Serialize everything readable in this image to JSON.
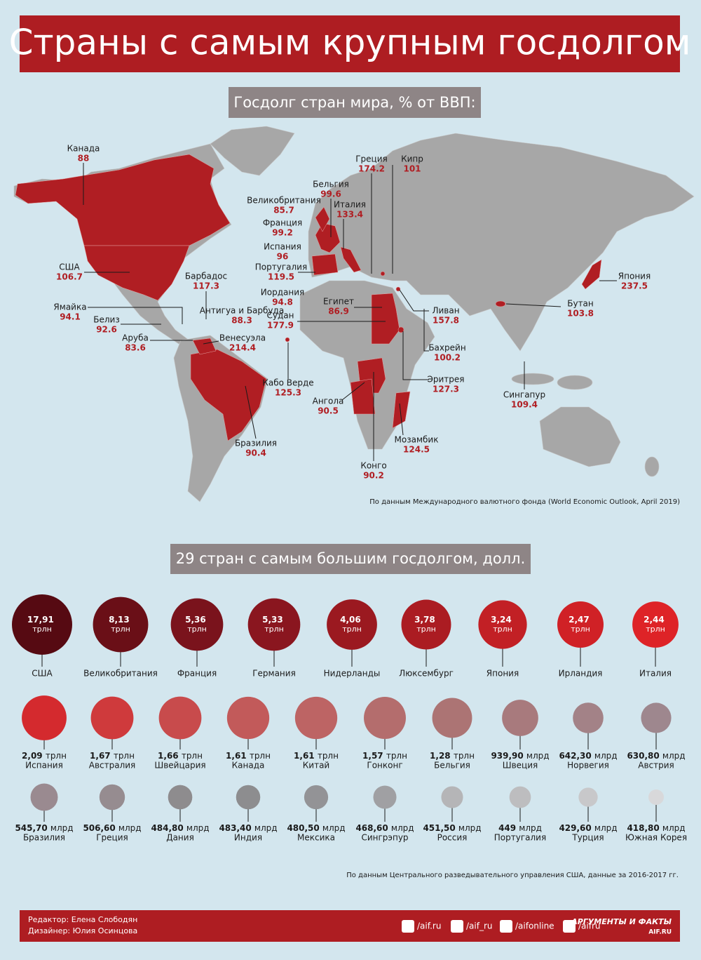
{
  "header": {
    "title": "Страны с самым крупным госдолгом"
  },
  "map": {
    "subtitle": "Госдолг стран мира, % от ВВП:",
    "countries": [
      {
        "name": "Канада",
        "value": 88
      },
      {
        "name": "США",
        "value": 106.7
      },
      {
        "name": "Ямайка",
        "value": 94.1
      },
      {
        "name": "Белиз",
        "value": 92.6
      },
      {
        "name": "Аруба",
        "value": 83.6
      },
      {
        "name": "Барбадос",
        "value": 117.3
      },
      {
        "name": "Антигуа и Барбуда",
        "value": 88.3
      },
      {
        "name": "Венесуэла",
        "value": 214.4
      },
      {
        "name": "Кабо Верде",
        "value": 125.3
      },
      {
        "name": "Бразилия",
        "value": 90.4
      },
      {
        "name": "Ангола",
        "value": 90.5
      },
      {
        "name": "Конго",
        "value": 90.2
      },
      {
        "name": "Мозамбик",
        "value": 124.5
      },
      {
        "name": "Эритрея",
        "value": 127.3
      },
      {
        "name": "Бахрейн",
        "value": 100.2
      },
      {
        "name": "Ливан",
        "value": 157.8
      },
      {
        "name": "Судан",
        "value": 177.9
      },
      {
        "name": "Египет",
        "value": 86.9
      },
      {
        "name": "Иордания",
        "value": 94.8
      },
      {
        "name": "Португалия",
        "value": 119.5
      },
      {
        "name": "Испания",
        "value": 96
      },
      {
        "name": "Франция",
        "value": 99.2
      },
      {
        "name": "Великобритания",
        "value": 85.7
      },
      {
        "name": "Бельгия",
        "value": 99.6
      },
      {
        "name": "Италия",
        "value": 133.4
      },
      {
        "name": "Греция",
        "value": 174.2
      },
      {
        "name": "Кипр",
        "value": 101
      },
      {
        "name": "Япония",
        "value": 237.5
      },
      {
        "name": "Бутан",
        "value": 103.8
      },
      {
        "name": "Сингапур",
        "value": 109.4
      }
    ],
    "source": "По данным Международного валютного фонда (World Economic Outlook, April 2019)"
  },
  "chart_data": {
    "type": "bubble",
    "title": "29 стран с самым большим госдолгом, долл.",
    "categories": [
      "США",
      "Великобритания",
      "Франция",
      "Германия",
      "Нидерланды",
      "Люксембург",
      "Япония",
      "Ирландия",
      "Италия",
      "Испания",
      "Австралия",
      "Швейцария",
      "Канада",
      "Китай",
      "Гонконг",
      "Бельгия",
      "Швеция",
      "Норвегия",
      "Австрия",
      "Бразилия",
      "Греция",
      "Дания",
      "Индия",
      "Мексика",
      "Сингрэпур",
      "Россия",
      "Португалия",
      "Турция",
      "Южная Корея"
    ],
    "values": [
      17910,
      8130,
      5360,
      5330,
      4060,
      3780,
      3240,
      2470,
      2440,
      2090,
      1670,
      1660,
      1610,
      1610,
      1570,
      1280,
      939.9,
      642.3,
      630.8,
      545.7,
      506.6,
      484.8,
      483.4,
      480.5,
      468.6,
      451.5,
      449,
      429.6,
      418.8
    ],
    "value_labels": [
      "17,91 трлн",
      "8,13 трлн",
      "5,36 трлн",
      "5,33 трлн",
      "4,06 трлн",
      "3,78 трлн",
      "3,24 трлн",
      "2,47 трлн",
      "2,44 трлн",
      "2,09 трлн",
      "1,67 трлн",
      "1,66 трлн",
      "1,61 трлн",
      "1,61 трлн",
      "1,57 трлн",
      "1,28 трлн",
      "939,90 млрд",
      "642,30 млрд",
      "630,80 млрд",
      "545,70 млрд",
      "506,60 млрд",
      "484,80 млрд",
      "483,40 млрд",
      "480,50 млрд",
      "468,60 млрд",
      "451,50 млрд",
      "449 млрд",
      "429,60 млрд",
      "418,80 млрд"
    ],
    "colors": [
      "#560a12",
      "#6a0f17",
      "#7a131c",
      "#8a161f",
      "#9b1920",
      "#ab1c22",
      "#c22025",
      "#d02126",
      "#de2327",
      "#d42a2e",
      "#cf3a3c",
      "#c84b4c",
      "#c25a5a",
      "#bd6464",
      "#b46d6d",
      "#ac7474",
      "#a87a7d",
      "#a38287",
      "#9e878e",
      "#9a8a90",
      "#968c90",
      "#8e8c8e",
      "#8d8d8f",
      "#939396",
      "#a0a0a3",
      "#b5b5b7",
      "#bdbdbf",
      "#c8c8ca",
      "#d8d8da"
    ],
    "source": "По данным Центрального разведывательного управления США, данные за 2016-2017 гг."
  },
  "footer": {
    "editor": "Редактор: Елена Слободян",
    "designer": "Дизайнер: Юлия Осинцова",
    "social": [
      "/aif.ru",
      "/aif_ru",
      "/aifonline",
      "/aifru"
    ],
    "logo": "АРГУМЕНТЫ И ФАКТЫ",
    "logo_site": "AIF.RU"
  }
}
